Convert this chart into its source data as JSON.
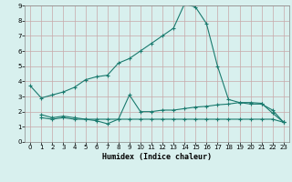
{
  "xlabel": "Humidex (Indice chaleur)",
  "bg_color": "#d8f0ee",
  "grid_color": "#c8a8a8",
  "line_color": "#1a7a6e",
  "xlim": [
    -0.5,
    23.5
  ],
  "ylim": [
    0,
    9
  ],
  "xticks": [
    0,
    1,
    2,
    3,
    4,
    5,
    6,
    7,
    8,
    9,
    10,
    11,
    12,
    13,
    14,
    15,
    16,
    17,
    18,
    19,
    20,
    21,
    22,
    23
  ],
  "yticks": [
    0,
    1,
    2,
    3,
    4,
    5,
    6,
    7,
    8,
    9
  ],
  "series1_x": [
    0,
    1,
    2,
    3,
    4,
    5,
    6,
    7,
    8,
    9,
    10,
    11,
    12,
    13,
    14,
    15,
    16,
    17,
    18,
    19,
    20,
    21,
    22,
    23
  ],
  "series1_y": [
    3.7,
    2.9,
    3.1,
    3.3,
    3.6,
    4.1,
    4.3,
    4.4,
    5.2,
    5.5,
    6.0,
    6.5,
    7.0,
    7.5,
    9.1,
    8.9,
    7.8,
    5.0,
    2.8,
    2.6,
    2.5,
    2.5,
    2.1,
    1.3
  ],
  "series2_x": [
    1,
    2,
    3,
    4,
    5,
    6,
    7,
    8,
    9,
    10,
    11,
    12,
    13,
    14,
    15,
    16,
    17,
    18,
    19,
    20,
    21,
    22,
    23
  ],
  "series2_y": [
    1.8,
    1.6,
    1.7,
    1.6,
    1.5,
    1.4,
    1.2,
    1.5,
    3.1,
    2.0,
    2.0,
    2.1,
    2.1,
    2.2,
    2.3,
    2.35,
    2.45,
    2.5,
    2.6,
    2.6,
    2.55,
    1.9,
    1.3
  ],
  "series3_x": [
    1,
    2,
    3,
    4,
    5,
    6,
    7,
    8,
    9,
    10,
    11,
    12,
    13,
    14,
    15,
    16,
    17,
    18,
    19,
    20,
    21,
    22,
    23
  ],
  "series3_y": [
    1.6,
    1.5,
    1.6,
    1.5,
    1.5,
    1.5,
    1.5,
    1.5,
    1.5,
    1.5,
    1.5,
    1.5,
    1.5,
    1.5,
    1.5,
    1.5,
    1.5,
    1.5,
    1.5,
    1.5,
    1.5,
    1.5,
    1.3
  ]
}
